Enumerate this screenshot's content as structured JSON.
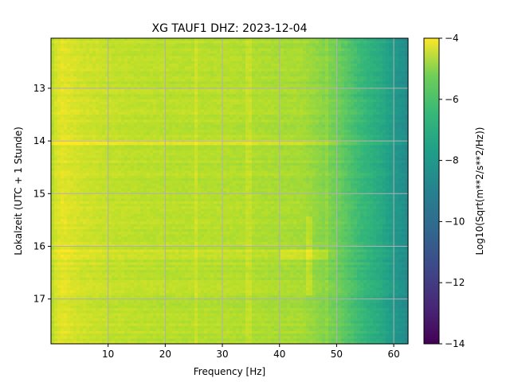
{
  "chart_data": {
    "type": "heatmap",
    "title": "XG TAUF1  DHZ: 2023-12-04",
    "xlabel": "Frequency [Hz]",
    "ylabel": "Lokalzeit (UTC + 1 Stunde)",
    "colorbar_label": "Log10(Sqrt(m**2/s**2/Hz))",
    "xlim": [
      0,
      62.5
    ],
    "ylim": [
      12.05,
      17.85
    ],
    "y_inverted": true,
    "x_ticks": [
      10,
      20,
      30,
      40,
      50,
      60
    ],
    "y_ticks": [
      13,
      14,
      15,
      16,
      17
    ],
    "colorbar_range": [
      -14,
      -4
    ],
    "colorbar_ticks": [
      -4,
      -6,
      -8,
      -10,
      -12,
      -14
    ],
    "colormap": "viridis",
    "grid": true,
    "frequency_profile": {
      "frequency_hz": [
        0,
        1,
        2,
        3,
        5,
        8,
        10,
        15,
        20,
        25,
        30,
        35,
        40,
        44,
        46,
        48,
        50,
        52,
        54,
        56,
        58,
        60,
        62.5
      ],
      "log10_amplitude": [
        -5.2,
        -4.6,
        -4.4,
        -4.5,
        -4.7,
        -4.8,
        -4.9,
        -5.0,
        -5.05,
        -5.1,
        -5.1,
        -5.2,
        -5.3,
        -5.35,
        -5.6,
        -5.9,
        -6.2,
        -6.7,
        -7.2,
        -7.6,
        -8.0,
        -8.6,
        -9.2
      ]
    }
  }
}
